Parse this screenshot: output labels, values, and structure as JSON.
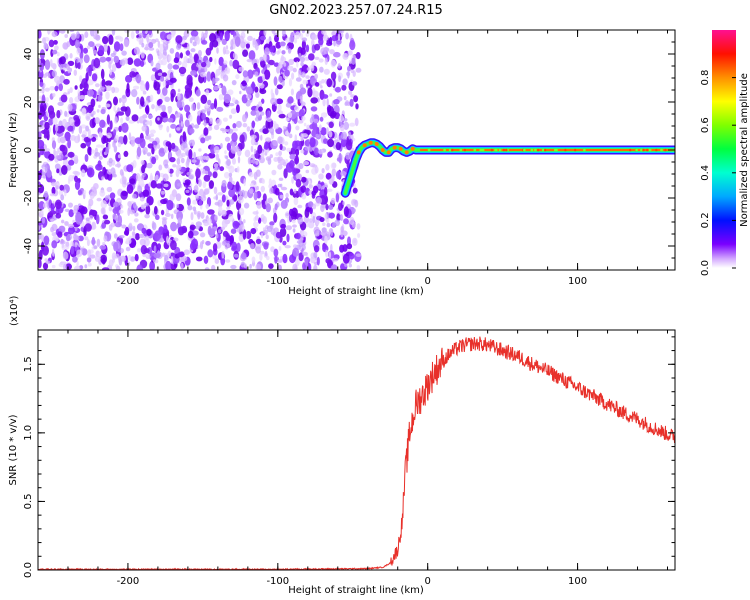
{
  "title": "GN02.2023.257.07.24.R15",
  "chart_data": [
    {
      "type": "heatmap",
      "xlabel": "Height of straight line (km)",
      "ylabel": "Frequency (Hz)",
      "xlim": [
        -260,
        165
      ],
      "ylim": [
        -50,
        50
      ],
      "xticks": [
        -200,
        -100,
        0,
        100
      ],
      "yticks": [
        -40,
        -20,
        0,
        20,
        40
      ],
      "colorbar": {
        "label": "Normalized spectral amplitude",
        "range": [
          0,
          1
        ],
        "ticks": [
          "0.0",
          "0.2",
          "0.4",
          "0.6",
          "0.8"
        ]
      },
      "noise_region": {
        "x_from": -260,
        "x_to": -50,
        "y_from": -50,
        "y_to": 50,
        "amplitude_range": [
          0.05,
          0.25
        ]
      },
      "signal_track": [
        {
          "x": -55,
          "y": -18
        },
        {
          "x": -52,
          "y": -12
        },
        {
          "x": -50,
          "y": -8
        },
        {
          "x": -48,
          "y": -4
        },
        {
          "x": -46,
          "y": -1
        },
        {
          "x": -44,
          "y": 1
        },
        {
          "x": -42,
          "y": 2
        },
        {
          "x": -40,
          "y": 2.5
        },
        {
          "x": -38,
          "y": 3
        },
        {
          "x": -36,
          "y": 3
        },
        {
          "x": -34,
          "y": 2.5
        },
        {
          "x": -32,
          "y": 1.5
        },
        {
          "x": -30,
          "y": 0
        },
        {
          "x": -28,
          "y": -1
        },
        {
          "x": -26,
          "y": -1
        },
        {
          "x": -24,
          "y": 0.5
        },
        {
          "x": -22,
          "y": 1
        },
        {
          "x": -20,
          "y": 1
        },
        {
          "x": -18,
          "y": 0.5
        },
        {
          "x": -16,
          "y": -0.5
        },
        {
          "x": -14,
          "y": -1
        },
        {
          "x": -12,
          "y": -0.5
        },
        {
          "x": -10,
          "y": 0.5
        },
        {
          "x": -8,
          "y": 0
        },
        {
          "x": -5,
          "y": 0
        },
        {
          "x": 0,
          "y": 0
        },
        {
          "x": 165,
          "y": 0
        }
      ]
    },
    {
      "type": "line",
      "xlabel": "Height of straight line (km)",
      "ylabel": "SNR (10 * v/v)",
      "yunit": "(x10⁴)",
      "xlim": [
        -260,
        165
      ],
      "ylim": [
        0,
        1.75
      ],
      "xticks": [
        -200,
        -100,
        0,
        100
      ],
      "yticks": [
        "0.0",
        "0.5",
        "1.0",
        "1.5"
      ],
      "series": [
        {
          "color": "#e8302a",
          "x": [
            -260,
            -200,
            -100,
            -40,
            -30,
            -25,
            -20,
            -17,
            -15,
            -12,
            -10,
            -8,
            -5,
            -2,
            0,
            5,
            10,
            15,
            20,
            25,
            30,
            35,
            40,
            45,
            50,
            60,
            70,
            80,
            90,
            100,
            110,
            120,
            130,
            140,
            150,
            160,
            165
          ],
          "y": [
            0.005,
            0.005,
            0.005,
            0.01,
            0.02,
            0.05,
            0.15,
            0.35,
            0.7,
            1.0,
            1.1,
            1.2,
            1.25,
            1.3,
            1.35,
            1.45,
            1.52,
            1.58,
            1.62,
            1.64,
            1.65,
            1.65,
            1.64,
            1.62,
            1.6,
            1.56,
            1.5,
            1.45,
            1.39,
            1.33,
            1.27,
            1.21,
            1.15,
            1.1,
            1.04,
            0.99,
            0.97
          ]
        }
      ]
    }
  ]
}
